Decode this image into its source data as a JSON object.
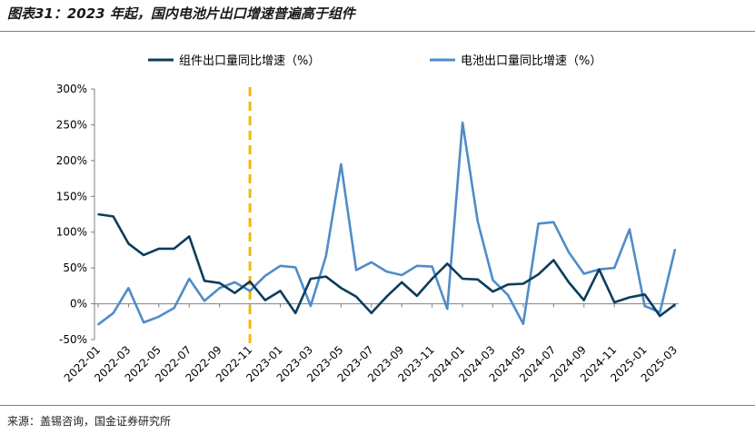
{
  "header": {
    "title": "图表31：2023 年起，国内电池片出口增速普遍高于组件"
  },
  "footer": {
    "source": "来源：盖锡咨询，国金证券研究所"
  },
  "chart_data": {
    "type": "line",
    "title": "",
    "xlabel": "",
    "ylabel": "",
    "ylim": [
      -50,
      300
    ],
    "yticks": [
      "-50%",
      "0%",
      "50%",
      "100%",
      "150%",
      "200%",
      "250%",
      "300%"
    ],
    "ytick_values": [
      -50,
      0,
      50,
      100,
      150,
      200,
      250,
      300
    ],
    "legend_position": "top",
    "grid": false,
    "x": [
      "2022-01",
      "2022-02",
      "2022-03",
      "2022-04",
      "2022-05",
      "2022-06",
      "2022-07",
      "2022-08",
      "2022-09",
      "2022-10",
      "2022-11",
      "2022-12",
      "2023-01",
      "2023-02",
      "2023-03",
      "2023-04",
      "2023-05",
      "2023-06",
      "2023-07",
      "2023-08",
      "2023-09",
      "2023-10",
      "2023-11",
      "2023-12",
      "2024-01",
      "2024-02",
      "2024-03",
      "2024-04",
      "2024-05",
      "2024-06",
      "2024-07",
      "2024-08",
      "2024-09",
      "2024-10",
      "2024-11",
      "2024-12",
      "2025-01",
      "2025-02",
      "2025-03"
    ],
    "xtick_labels": [
      "2022-01",
      "2022-03",
      "2022-05",
      "2022-07",
      "2022-09",
      "2022-11",
      "2023-01",
      "2023-03",
      "2023-05",
      "2023-07",
      "2023-09",
      "2023-11",
      "2024-01",
      "2024-03",
      "2024-05",
      "2024-07",
      "2024-09",
      "2024-11",
      "2025-01",
      "2025-03"
    ],
    "marker_line": {
      "x": "2022-11",
      "color": "#f5b800"
    },
    "series": [
      {
        "name": "组件出口量同比增速（%）",
        "color": "#0b3d5c",
        "values": [
          125,
          122,
          84,
          68,
          77,
          77,
          94,
          32,
          29,
          15,
          31,
          5,
          18,
          -13,
          35,
          38,
          22,
          10,
          -13,
          10,
          30,
          11,
          35,
          56,
          35,
          34,
          17,
          27,
          28,
          41,
          61,
          30,
          5,
          48,
          2,
          9,
          13,
          -17,
          -1
        ]
      },
      {
        "name": "电池出口量同比增速（%）",
        "color": "#4f8cc9",
        "values": [
          -29,
          -13,
          22,
          -26,
          -18,
          -6,
          35,
          4,
          22,
          30,
          18,
          39,
          53,
          51,
          -3,
          66,
          195,
          47,
          58,
          45,
          40,
          53,
          52,
          -7,
          253,
          115,
          33,
          12,
          -28,
          112,
          114,
          72,
          42,
          48,
          50,
          104,
          -3,
          -12,
          76
        ]
      }
    ]
  }
}
